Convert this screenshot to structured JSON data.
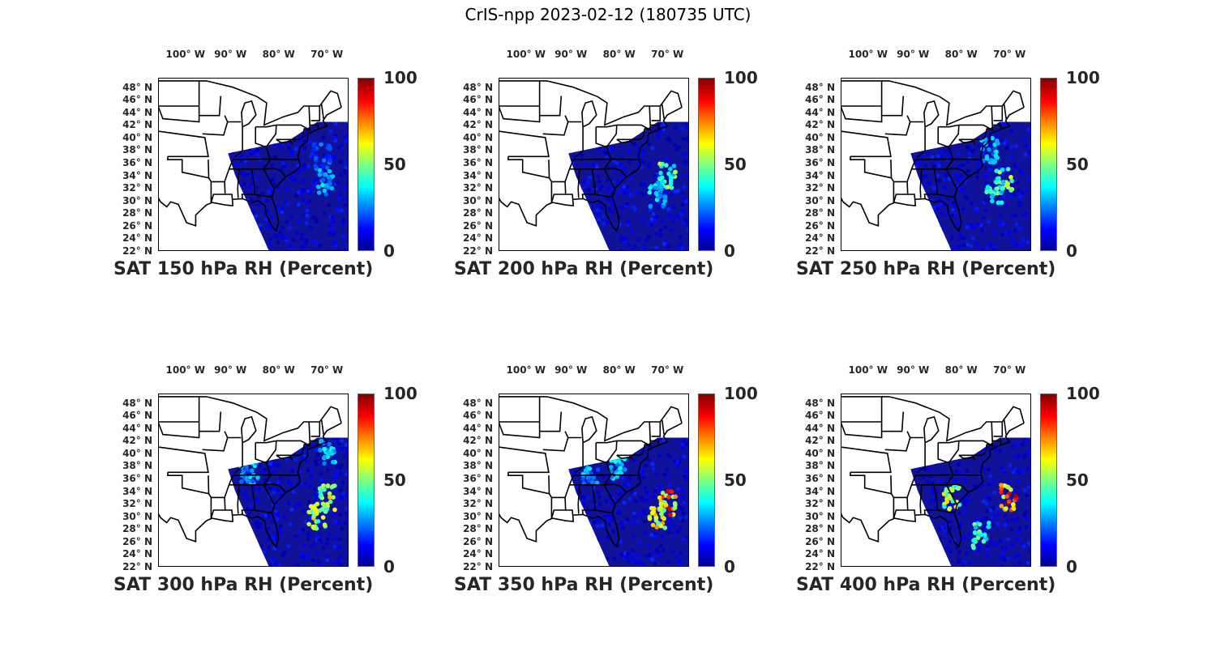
{
  "figure_title": "CrIS-npp 2023-02-12 (180735 UTC)",
  "chart_data": [
    {
      "type": "heatmap",
      "title": "SAT 150 hPa RH (Percent)",
      "colorbar": {
        "min": 0,
        "max": 100,
        "ticks": [
          "0",
          "50",
          "100"
        ]
      },
      "lon_ticks": [
        "100° W",
        "90° W",
        "80° W",
        "70° W"
      ],
      "lat_ticks": [
        "48° N",
        "46° N",
        "44° N",
        "42° N",
        "40° N",
        "38° N",
        "36° N",
        "34° N",
        "32° N",
        "30° N",
        "28° N",
        "26° N",
        "24° N",
        "22° N"
      ],
      "hotspots": [
        [
          -70.5,
          33,
          35
        ],
        [
          -71,
          37,
          25
        ]
      ]
    },
    {
      "type": "heatmap",
      "title": "SAT 200 hPa RH (Percent)",
      "colorbar": {
        "min": 0,
        "max": 100,
        "ticks": [
          "0",
          "50",
          "100"
        ]
      },
      "lon_ticks": [
        "100° W",
        "90° W",
        "80° W",
        "70° W"
      ],
      "lat_ticks": [
        "48° N",
        "46° N",
        "44° N",
        "42° N",
        "40° N",
        "38° N",
        "36° N",
        "34° N",
        "32° N",
        "30° N",
        "28° N",
        "26° N",
        "24° N",
        "22° N"
      ],
      "hotspots": [
        [
          -70,
          34,
          55
        ],
        [
          -72,
          31,
          40
        ]
      ]
    },
    {
      "type": "heatmap",
      "title": "SAT 250 hPa RH (Percent)",
      "colorbar": {
        "min": 0,
        "max": 100,
        "ticks": [
          "0",
          "50",
          "100"
        ]
      },
      "lon_ticks": [
        "100° W",
        "90° W",
        "80° W",
        "70° W"
      ],
      "lat_ticks": [
        "48° N",
        "46° N",
        "44° N",
        "42° N",
        "40° N",
        "38° N",
        "36° N",
        "34° N",
        "32° N",
        "30° N",
        "28° N",
        "26° N",
        "24° N",
        "22° N"
      ],
      "hotspots": [
        [
          -71,
          33,
          60
        ],
        [
          -73,
          31,
          45
        ],
        [
          -74,
          38,
          35
        ]
      ]
    },
    {
      "type": "heatmap",
      "title": "SAT 300 hPa RH (Percent)",
      "colorbar": {
        "min": 0,
        "max": 100,
        "ticks": [
          "0",
          "50",
          "100"
        ]
      },
      "lon_ticks": [
        "100° W",
        "90° W",
        "80° W",
        "70° W"
      ],
      "lat_ticks": [
        "48° N",
        "46° N",
        "44° N",
        "42° N",
        "40° N",
        "38° N",
        "36° N",
        "34° N",
        "32° N",
        "30° N",
        "28° N",
        "26° N",
        "24° N",
        "22° N"
      ],
      "hotspots": [
        [
          -70,
          33,
          65
        ],
        [
          -72,
          30,
          70
        ],
        [
          -70,
          40,
          40
        ],
        [
          -86,
          37,
          35
        ]
      ]
    },
    {
      "type": "heatmap",
      "title": "SAT 350 hPa RH (Percent)",
      "colorbar": {
        "min": 0,
        "max": 100,
        "ticks": [
          "0",
          "50",
          "100"
        ]
      },
      "lon_ticks": [
        "100° W",
        "90° W",
        "80° W",
        "70° W"
      ],
      "lat_ticks": [
        "48° N",
        "46° N",
        "44° N",
        "42° N",
        "40° N",
        "38° N",
        "36° N",
        "34° N",
        "32° N",
        "30° N",
        "28° N",
        "26° N",
        "24° N",
        "22° N"
      ],
      "hotspots": [
        [
          -70,
          32,
          90
        ],
        [
          -72,
          30,
          70
        ],
        [
          -80,
          38,
          40
        ],
        [
          -86,
          37,
          35
        ]
      ]
    },
    {
      "type": "heatmap",
      "title": "SAT 400 hPa RH (Percent)",
      "colorbar": {
        "min": 0,
        "max": 100,
        "ticks": [
          "0",
          "50",
          "100"
        ]
      },
      "lon_ticks": [
        "100° W",
        "90° W",
        "80° W",
        "70° W"
      ],
      "lat_ticks": [
        "48° N",
        "46° N",
        "44° N",
        "42° N",
        "40° N",
        "38° N",
        "36° N",
        "34° N",
        "32° N",
        "30° N",
        "28° N",
        "26° N",
        "24° N",
        "22° N"
      ],
      "hotspots": [
        [
          -70,
          33,
          95
        ],
        [
          -82,
          33,
          65
        ],
        [
          -76,
          27,
          50
        ]
      ]
    }
  ]
}
